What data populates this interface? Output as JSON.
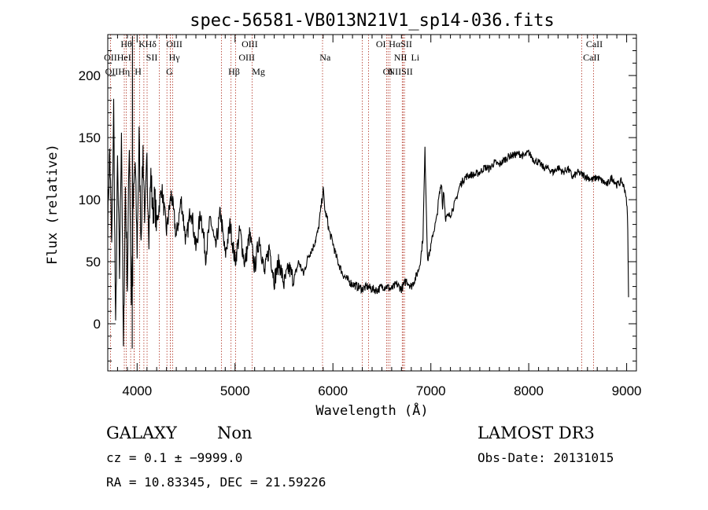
{
  "chart_data": {
    "type": "line",
    "title": "spec-56581-VB013N21V1_sp14-036.fits",
    "xlabel": "Wavelength (Å)",
    "ylabel": "Flux (relative)",
    "xlim": [
      3700,
      9100
    ],
    "ylim": [
      -38,
      233
    ],
    "x_ticks": [
      {
        "value": 4000,
        "label": "4000"
      },
      {
        "value": 5000,
        "label": "5000"
      },
      {
        "value": 6000,
        "label": "6000"
      },
      {
        "value": 7000,
        "label": "7000"
      },
      {
        "value": 8000,
        "label": "8000"
      },
      {
        "value": 9000,
        "label": "9000"
      }
    ],
    "y_ticks": [
      {
        "value": 0,
        "label": "0"
      },
      {
        "value": 50,
        "label": "50"
      },
      {
        "value": 100,
        "label": "100"
      },
      {
        "value": 150,
        "label": "150"
      },
      {
        "value": 200,
        "label": "200"
      }
    ],
    "grid": false,
    "spectrum": {
      "x": [
        3700,
        3720,
        3740,
        3760,
        3780,
        3800,
        3820,
        3840,
        3860,
        3880,
        3900,
        3920,
        3940,
        3960,
        3980,
        4000,
        4020,
        4040,
        4060,
        4080,
        4100,
        4120,
        4140,
        4160,
        4180,
        4200,
        4250,
        4300,
        4350,
        4400,
        4450,
        4500,
        4550,
        4600,
        4650,
        4700,
        4750,
        4800,
        4850,
        4900,
        4950,
        5000,
        5050,
        5100,
        5150,
        5200,
        5250,
        5300,
        5350,
        5400,
        5450,
        5500,
        5550,
        5600,
        5650,
        5700,
        5750,
        5800,
        5850,
        5880,
        5900,
        5920,
        5940,
        5960,
        5980,
        6000,
        6030,
        6060,
        6100,
        6150,
        6200,
        6250,
        6300,
        6350,
        6400,
        6450,
        6500,
        6550,
        6600,
        6650,
        6700,
        6750,
        6800,
        6850,
        6880,
        6900,
        6920,
        6940,
        6955,
        6963,
        6970,
        6980,
        7000,
        7020,
        7040,
        7060,
        7080,
        7100,
        7110,
        7120,
        7130,
        7150,
        7200,
        7250,
        7300,
        7350,
        7400,
        7450,
        7500,
        7550,
        7600,
        7650,
        7700,
        7750,
        7800,
        7850,
        7900,
        7950,
        8000,
        8050,
        8100,
        8150,
        8200,
        8250,
        8300,
        8350,
        8400,
        8450,
        8500,
        8550,
        8600,
        8650,
        8700,
        8750,
        8800,
        8850,
        8900,
        8950,
        8990,
        9000,
        9010,
        9020
      ],
      "y": [
        85,
        140,
        60,
        175,
        -10,
        130,
        40,
        160,
        -25,
        110,
        30,
        150,
        20,
        95,
        130,
        60,
        150,
        70,
        140,
        80,
        130,
        75,
        120,
        90,
        100,
        80,
        110,
        75,
        105,
        70,
        100,
        65,
        95,
        60,
        90,
        55,
        85,
        60,
        90,
        55,
        80,
        50,
        75,
        48,
        72,
        45,
        70,
        40,
        62,
        35,
        50,
        32,
        45,
        35,
        50,
        40,
        55,
        62,
        75,
        95,
        108,
        90,
        85,
        75,
        70,
        65,
        55,
        48,
        40,
        35,
        32,
        30,
        28,
        30,
        28,
        27,
        30,
        30,
        28,
        32,
        28,
        35,
        30,
        38,
        45,
        55,
        70,
        140,
        90,
        60,
        52,
        55,
        62,
        72,
        78,
        85,
        100,
        110,
        115,
        92,
        110,
        85,
        88,
        98,
        112,
        118,
        120,
        120,
        122,
        126,
        125,
        130,
        128,
        132,
        135,
        136,
        137,
        135,
        138,
        132,
        130,
        126,
        125,
        122,
        126,
        122,
        125,
        118,
        122,
        120,
        118,
        116,
        118,
        115,
        112,
        118,
        112,
        115,
        106,
        95,
        88,
        20
      ]
    },
    "lines": [
      {
        "label": "OII",
        "wave": 3727
      },
      {
        "label": "OIII",
        "wave": 3869
      },
      {
        "label": "Hθ",
        "wave": 3889
      },
      {
        "label": "H",
        "wave": 3934
      },
      {
        "label": "K",
        "wave": 3968
      },
      {
        "label": "Hη",
        "wave": 3970
      },
      {
        "label": "HeI",
        "wave": 4026
      },
      {
        "label": "SII",
        "wave": 4069
      },
      {
        "label": "Hδ",
        "wave": 4102
      },
      {
        "label": "H",
        "wave": 4227
      },
      {
        "label": "SII",
        "wave": 4340
      },
      {
        "label": "Hγ",
        "wave": 4340
      },
      {
        "label": "OIII",
        "wave": 4363
      },
      {
        "label": "G",
        "wave": 4304
      },
      {
        "label": "Hβ",
        "wave": 4861
      },
      {
        "label": "OIII",
        "wave": 4959
      },
      {
        "label": "OIII",
        "wave": 5007
      },
      {
        "label": "Mg",
        "wave": 5175
      },
      {
        "label": "Na",
        "wave": 5894
      },
      {
        "label": "OI",
        "wave": 6300
      },
      {
        "label": "OI",
        "wave": 6364
      },
      {
        "label": "NII",
        "wave": 6548
      },
      {
        "label": "Hα",
        "wave": 6563
      },
      {
        "label": "NII",
        "wave": 6583
      },
      {
        "label": "SII",
        "wave": 6717
      },
      {
        "label": "Li",
        "wave": 6708
      },
      {
        "label": "SII",
        "wave": 6731
      },
      {
        "label": "CaII",
        "wave": 8542
      },
      {
        "label": "CaII",
        "wave": 8662
      }
    ]
  },
  "line_labels": [
    {
      "text": "Hθ",
      "row": 0,
      "wave": 3890
    },
    {
      "text": "K",
      "row": 0,
      "wave": 4050
    },
    {
      "text": "Hδ",
      "row": 0,
      "wave": 4140
    },
    {
      "text": "OIII",
      "row": 0,
      "wave": 4380
    },
    {
      "text": "OIII",
      "row": 0,
      "wave": 5150
    },
    {
      "text": "OI",
      "row": 0,
      "wave": 6490
    },
    {
      "text": "HαSII",
      "row": 0,
      "wave": 6690
    },
    {
      "text": "CaII",
      "row": 0,
      "wave": 8670
    },
    {
      "text": "OIIHeI",
      "row": 1,
      "wave": 3800
    },
    {
      "text": "SII",
      "row": 1,
      "wave": 4150
    },
    {
      "text": "Hγ",
      "row": 1,
      "wave": 4380
    },
    {
      "text": "OIII",
      "row": 1,
      "wave": 5120
    },
    {
      "text": "Na",
      "row": 1,
      "wave": 5920
    },
    {
      "text": "NII",
      "row": 1,
      "wave": 6690
    },
    {
      "text": "Li",
      "row": 1,
      "wave": 6840
    },
    {
      "text": "CaII",
      "row": 1,
      "wave": 8640
    },
    {
      "text": "OIIHη",
      "row": 2,
      "wave": 3800
    },
    {
      "text": "H",
      "row": 2,
      "wave": 4010
    },
    {
      "text": "G",
      "row": 2,
      "wave": 4330
    },
    {
      "text": "Hβ",
      "row": 2,
      "wave": 4990
    },
    {
      "text": "Mg",
      "row": 2,
      "wave": 5240
    },
    {
      "text": "OI",
      "row": 2,
      "wave": 6560
    },
    {
      "text": "NIISII",
      "row": 2,
      "wave": 6690
    }
  ],
  "info": {
    "class": "GALAXY",
    "subclass": "Non",
    "survey": "LAMOST DR3",
    "cz": "cz = 0.1 ± −9999.0",
    "obs_date": "Obs-Date: 20131015",
    "radec": "RA =  10.83345, DEC =  21.59226"
  },
  "colors": {
    "axes": "#000000",
    "spectrum": "#000000",
    "line_marker": "#b03020"
  }
}
